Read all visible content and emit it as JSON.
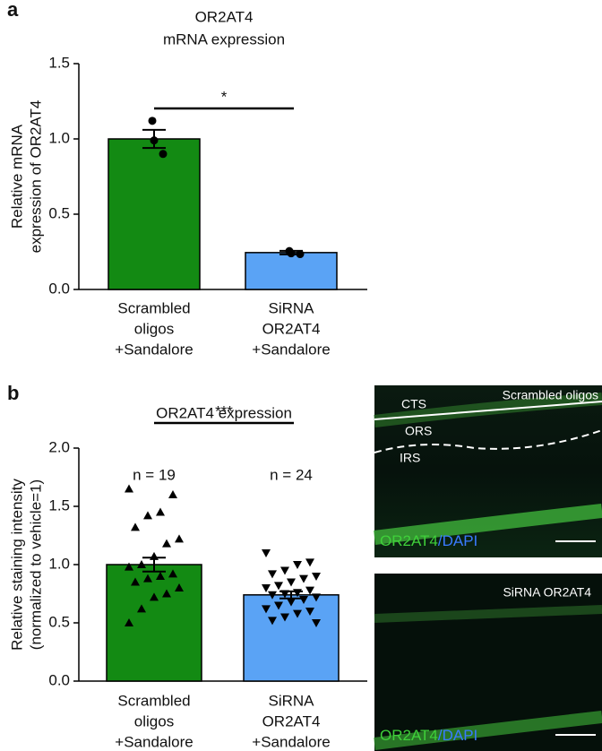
{
  "panel_labels": [
    "a",
    "b"
  ],
  "chart_data": [
    {
      "type": "bar",
      "title": [
        "OR2AT4",
        "mRNA expression"
      ],
      "ylabel": [
        "Relative mRNA",
        "expression of OR2AT4"
      ],
      "categories": [
        [
          "Scrambled",
          "oligos",
          "+Sandalore"
        ],
        [
          "SiRNA",
          "OR2AT4",
          "+Sandalore"
        ]
      ],
      "values": [
        1.0,
        0.245
      ],
      "errors": [
        0.06,
        0.012
      ],
      "points": [
        [
          1.12,
          0.99,
          0.9
        ],
        [
          0.255,
          0.24,
          0.235
        ]
      ],
      "markers": [
        "circle",
        "circle"
      ],
      "colors": [
        "#138a13",
        "#5aa3f5"
      ],
      "ylim": [
        0,
        1.5
      ],
      "yticks": [
        {
          "value": 0,
          "label": "0.0"
        },
        0.5,
        {
          "value": 1,
          "label": "1.0"
        },
        1.5
      ],
      "significance": "*"
    },
    {
      "type": "bar",
      "title": [
        "OR2AT4 expression"
      ],
      "ylabel": [
        "Relative staining intensity",
        "(normalized to vehicle=1)"
      ],
      "categories": [
        [
          "Scrambled",
          "oligos",
          "+Sandalore"
        ],
        [
          "SiRNA",
          "OR2AT4",
          "+Sandalore"
        ]
      ],
      "values": [
        1.0,
        0.74
      ],
      "errors": [
        0.06,
        0.03
      ],
      "points": [
        [
          1.65,
          1.6,
          1.45,
          1.42,
          1.32,
          1.22,
          1.18,
          1.07,
          1.0,
          0.98,
          0.92,
          0.9,
          0.88,
          0.85,
          0.8,
          0.75,
          0.72,
          0.62,
          0.5
        ],
        [
          1.1,
          1.02,
          1.0,
          0.95,
          0.92,
          0.9,
          0.88,
          0.85,
          0.82,
          0.8,
          0.78,
          0.76,
          0.75,
          0.74,
          0.72,
          0.7,
          0.68,
          0.65,
          0.62,
          0.6,
          0.58,
          0.55,
          0.52,
          0.5
        ]
      ],
      "markers": [
        "triangle-up",
        "triangle-down"
      ],
      "n_labels": [
        "n = 19",
        "n = 24"
      ],
      "colors": [
        "#138a13",
        "#5aa3f5"
      ],
      "ylim": [
        0,
        2
      ],
      "yticks": [
        {
          "value": 0,
          "label": "0.0"
        },
        0.5,
        {
          "value": 1,
          "label": "1.0"
        },
        1.5,
        {
          "value": 2,
          "label": "2.0"
        }
      ],
      "significance": "***"
    }
  ],
  "images": [
    {
      "title": "Scrambled oligos",
      "regions": [
        "CTS",
        "ORS",
        "IRS"
      ],
      "stain": "OR2AT4",
      "counterstain": "/DAPI"
    },
    {
      "title": "SiRNA OR2AT4",
      "stain": "OR2AT4",
      "counterstain": "/DAPI"
    }
  ]
}
